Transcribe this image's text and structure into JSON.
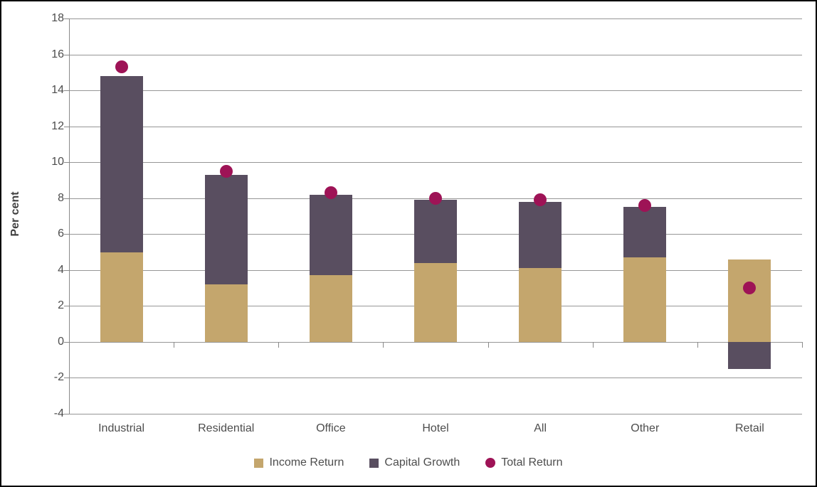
{
  "chart_data": {
    "type": "bar",
    "subtype": "stacked-bar-with-point-overlay",
    "title": "",
    "xlabel": "",
    "ylabel": "Per cent",
    "ylim": [
      -4,
      18
    ],
    "ytick_step": 2,
    "grid": true,
    "legend_position": "bottom",
    "categories": [
      "Industrial",
      "Residential",
      "Office",
      "Hotel",
      "All",
      "Other",
      "Retail"
    ],
    "series": [
      {
        "name": "Income Return",
        "render": "stacked-bar",
        "color": "#C4A66D",
        "values": [
          5.0,
          3.2,
          3.7,
          4.4,
          4.1,
          4.7,
          4.6
        ]
      },
      {
        "name": "Capital Growth",
        "render": "stacked-bar",
        "color": "#594E60",
        "values": [
          9.8,
          6.1,
          4.5,
          3.5,
          3.7,
          2.8,
          -1.5
        ]
      },
      {
        "name": "Total Return",
        "render": "point",
        "color": "#9E1356",
        "values": [
          15.3,
          9.5,
          8.3,
          8.0,
          7.9,
          7.6,
          3.0
        ]
      }
    ]
  },
  "colors": {
    "background": "#FFFFFF",
    "border": "#000000",
    "gridline": "#969696",
    "axis": "#898989",
    "text": "#4D4D4D",
    "income_return": "#C4A66D",
    "capital_growth": "#594E60",
    "total_return": "#9E1356"
  }
}
